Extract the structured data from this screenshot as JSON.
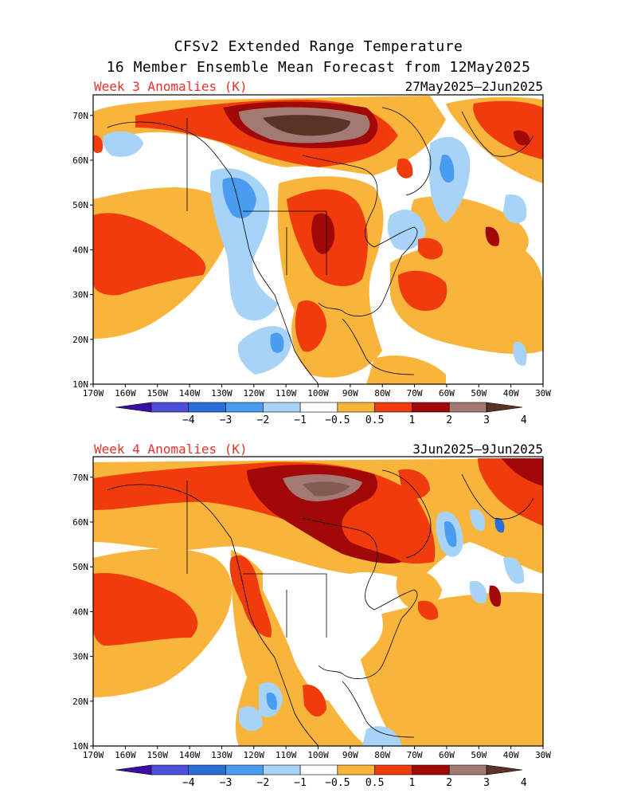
{
  "title_line1": "CFSv2 Extended Range Temperature",
  "title_line2": "16 Member Ensemble Mean Forecast from 12May2025",
  "panels": [
    {
      "label": "Week 3 Anomalies (K)",
      "dates": "27May2025–2Jun2025"
    },
    {
      "label": "Week 4 Anomalies (K)",
      "dates": "3Jun2025–9Jun2025"
    }
  ],
  "lat_labels": [
    "70N",
    "60N",
    "50N",
    "40N",
    "30N",
    "20N",
    "10N"
  ],
  "lon_labels": [
    "170W",
    "160W",
    "150W",
    "140W",
    "130W",
    "120W",
    "110W",
    "100W",
    "90W",
    "80W",
    "70W",
    "60W",
    "50W",
    "40W",
    "30W"
  ],
  "colorbar": {
    "tick_labels": [
      "−4",
      "−3",
      "−2",
      "−1",
      "−0.5",
      "0.5",
      "1",
      "2",
      "3",
      "4"
    ],
    "colors": [
      "#3a0fa6",
      "#4d4ed9",
      "#2b6fd6",
      "#4a9cf0",
      "#a6d3f6",
      "#ffffff",
      "#f9b43c",
      "#f03c0c",
      "#a10808",
      "#a37a73",
      "#5b3326"
    ]
  }
}
